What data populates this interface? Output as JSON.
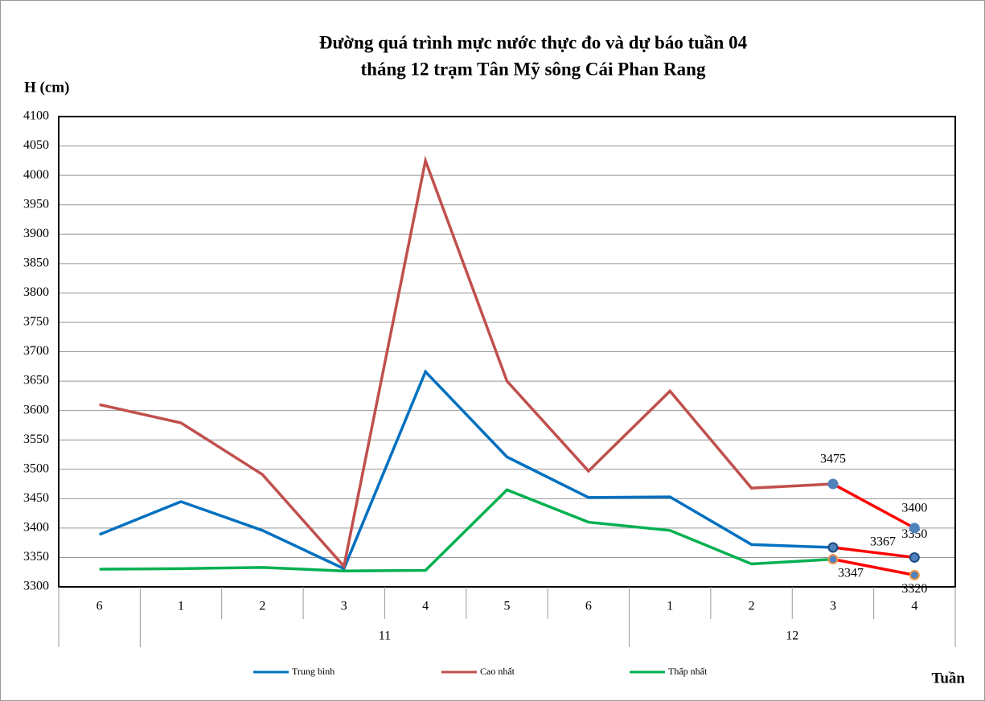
{
  "chart_data": {
    "type": "line",
    "title": [
      "Đường quá trình mực nước thực đo và dự báo tuần 04",
      "tháng 12 trạm Tân Mỹ sông Cái Phan Rang"
    ],
    "ylabel": "H (cm)",
    "xlabel": "Tuần",
    "categories": [
      "6",
      "1",
      "2",
      "3",
      "4",
      "5",
      "6",
      "1",
      "2",
      "3",
      "4"
    ],
    "groups": [
      {
        "label": "11",
        "start": 1,
        "end": 6
      },
      {
        "label": "12",
        "start": 7,
        "end": 10
      }
    ],
    "ylim": [
      3300,
      4100
    ],
    "yticks": [
      3300,
      3350,
      3400,
      3450,
      3500,
      3550,
      3600,
      3650,
      3700,
      3750,
      3800,
      3850,
      3900,
      3950,
      4000,
      4050,
      4100
    ],
    "grid": true,
    "forecast_start": 9,
    "forecast_color": "#ff0000",
    "series": [
      {
        "name": "Trung bình",
        "color": "#0070c0",
        "marker_edge": "#1f497d",
        "values": [
          3389,
          3445,
          3396,
          3331,
          3666,
          3521,
          3452,
          3453,
          3372,
          3367,
          3350
        ]
      },
      {
        "name": "Cao nhất",
        "color": "#c0504d",
        "marker_edge": "#4f81bd",
        "values": [
          3610,
          3579,
          3491,
          3335,
          4025,
          3650,
          3497,
          3633,
          3468,
          3475,
          3400
        ]
      },
      {
        "name": "Thấp nhất",
        "color": "#00b050",
        "marker_edge": "#f79646",
        "values": [
          3330,
          3331,
          3333,
          3327,
          3328,
          3465,
          3410,
          3396,
          3339,
          3347,
          3320
        ]
      }
    ]
  }
}
